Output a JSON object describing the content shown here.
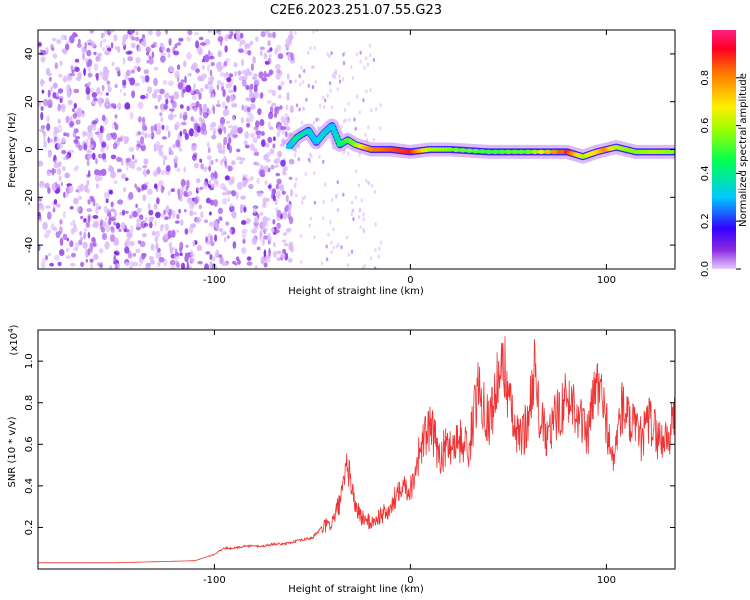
{
  "title": "C2E6.2023.251.07.55.G23",
  "chart_data": [
    {
      "type": "heatmap",
      "xlabel": "Height of straight line (km)",
      "ylabel": "Frequency (Hz)",
      "xlim": [
        -190,
        135
      ],
      "ylim": [
        -50,
        50
      ],
      "xticks": [
        -100,
        0,
        100
      ],
      "xtick_labels": [
        "-100",
        "0",
        "100"
      ],
      "yticks": [
        -40,
        -20,
        0,
        20,
        40
      ],
      "ytick_labels": [
        "-40",
        "-20",
        "0",
        "20",
        "40"
      ],
      "colorbar": {
        "label": "Normalized spectral amplitude",
        "range": [
          0,
          1
        ],
        "ticks": [
          0.0,
          0.2,
          0.4,
          0.6,
          0.8
        ],
        "tick_labels": [
          "0.0",
          "0.2",
          "0.4",
          "0.6",
          "0.8"
        ],
        "colormap": "rainbow"
      },
      "noise_region_x": [
        -190,
        -60
      ],
      "signal_track": {
        "x": [
          -62,
          -58,
          -52,
          -48,
          -44,
          -40,
          -36,
          -32,
          -28,
          -24,
          -20,
          -10,
          0,
          10,
          20,
          40,
          60,
          80,
          88,
          95,
          100,
          105,
          115,
          125,
          135
        ],
        "y": [
          1,
          5,
          8,
          3,
          7,
          10,
          2,
          4,
          2,
          1,
          0,
          0,
          -1,
          0,
          0,
          -1,
          -1,
          -1,
          -3,
          -1,
          0,
          1,
          -1,
          -1,
          -1
        ],
        "amplitude": [
          0.3,
          0.4,
          0.35,
          0.3,
          0.35,
          0.3,
          0.4,
          0.5,
          0.55,
          0.7,
          0.8,
          0.85,
          0.9,
          0.6,
          0.55,
          0.5,
          0.55,
          0.9,
          0.6,
          0.7,
          0.8,
          0.6,
          0.55,
          0.6,
          0.55
        ]
      },
      "grid": false
    },
    {
      "type": "line",
      "xlabel": "Height of straight line (km)",
      "ylabel": "SNR (10 * v/v)",
      "yscale_label": "(x10",
      "yscale_exp": "4",
      "xlim": [
        -190,
        135
      ],
      "ylim": [
        0,
        1.15
      ],
      "xticks": [
        -100,
        0,
        100
      ],
      "xtick_labels": [
        "-100",
        "0",
        "100"
      ],
      "yticks": [
        0.2,
        0.4,
        0.6,
        0.8,
        1.0
      ],
      "ytick_labels": [
        "0.2",
        "0.4",
        "0.6",
        "0.8",
        "1.0"
      ],
      "series": [
        {
          "color": "#ee3333",
          "x": [
            -190,
            -170,
            -150,
            -130,
            -110,
            -100,
            -95,
            -90,
            -85,
            -80,
            -75,
            -70,
            -65,
            -60,
            -55,
            -50,
            -45,
            -40,
            -35,
            -32,
            -30,
            -28,
            -25,
            -20,
            -15,
            -10,
            -5,
            0,
            5,
            10,
            15,
            20,
            25,
            30,
            35,
            40,
            45,
            48,
            52,
            55,
            60,
            63,
            66,
            70,
            75,
            80,
            85,
            90,
            95,
            98,
            100,
            103,
            108,
            112,
            118,
            122,
            127,
            132,
            135
          ],
          "y": [
            0.03,
            0.03,
            0.03,
            0.035,
            0.04,
            0.07,
            0.1,
            0.1,
            0.11,
            0.11,
            0.11,
            0.12,
            0.12,
            0.13,
            0.14,
            0.15,
            0.2,
            0.22,
            0.35,
            0.5,
            0.4,
            0.3,
            0.25,
            0.22,
            0.26,
            0.28,
            0.42,
            0.38,
            0.58,
            0.68,
            0.55,
            0.6,
            0.62,
            0.58,
            0.9,
            0.7,
            0.92,
            0.98,
            0.72,
            0.62,
            0.7,
            0.98,
            0.72,
            0.62,
            0.75,
            0.82,
            0.78,
            0.62,
            0.9,
            0.8,
            0.72,
            0.5,
            0.78,
            0.7,
            0.62,
            0.72,
            0.62,
            0.64,
            0.75
          ]
        }
      ],
      "grid": false
    }
  ]
}
